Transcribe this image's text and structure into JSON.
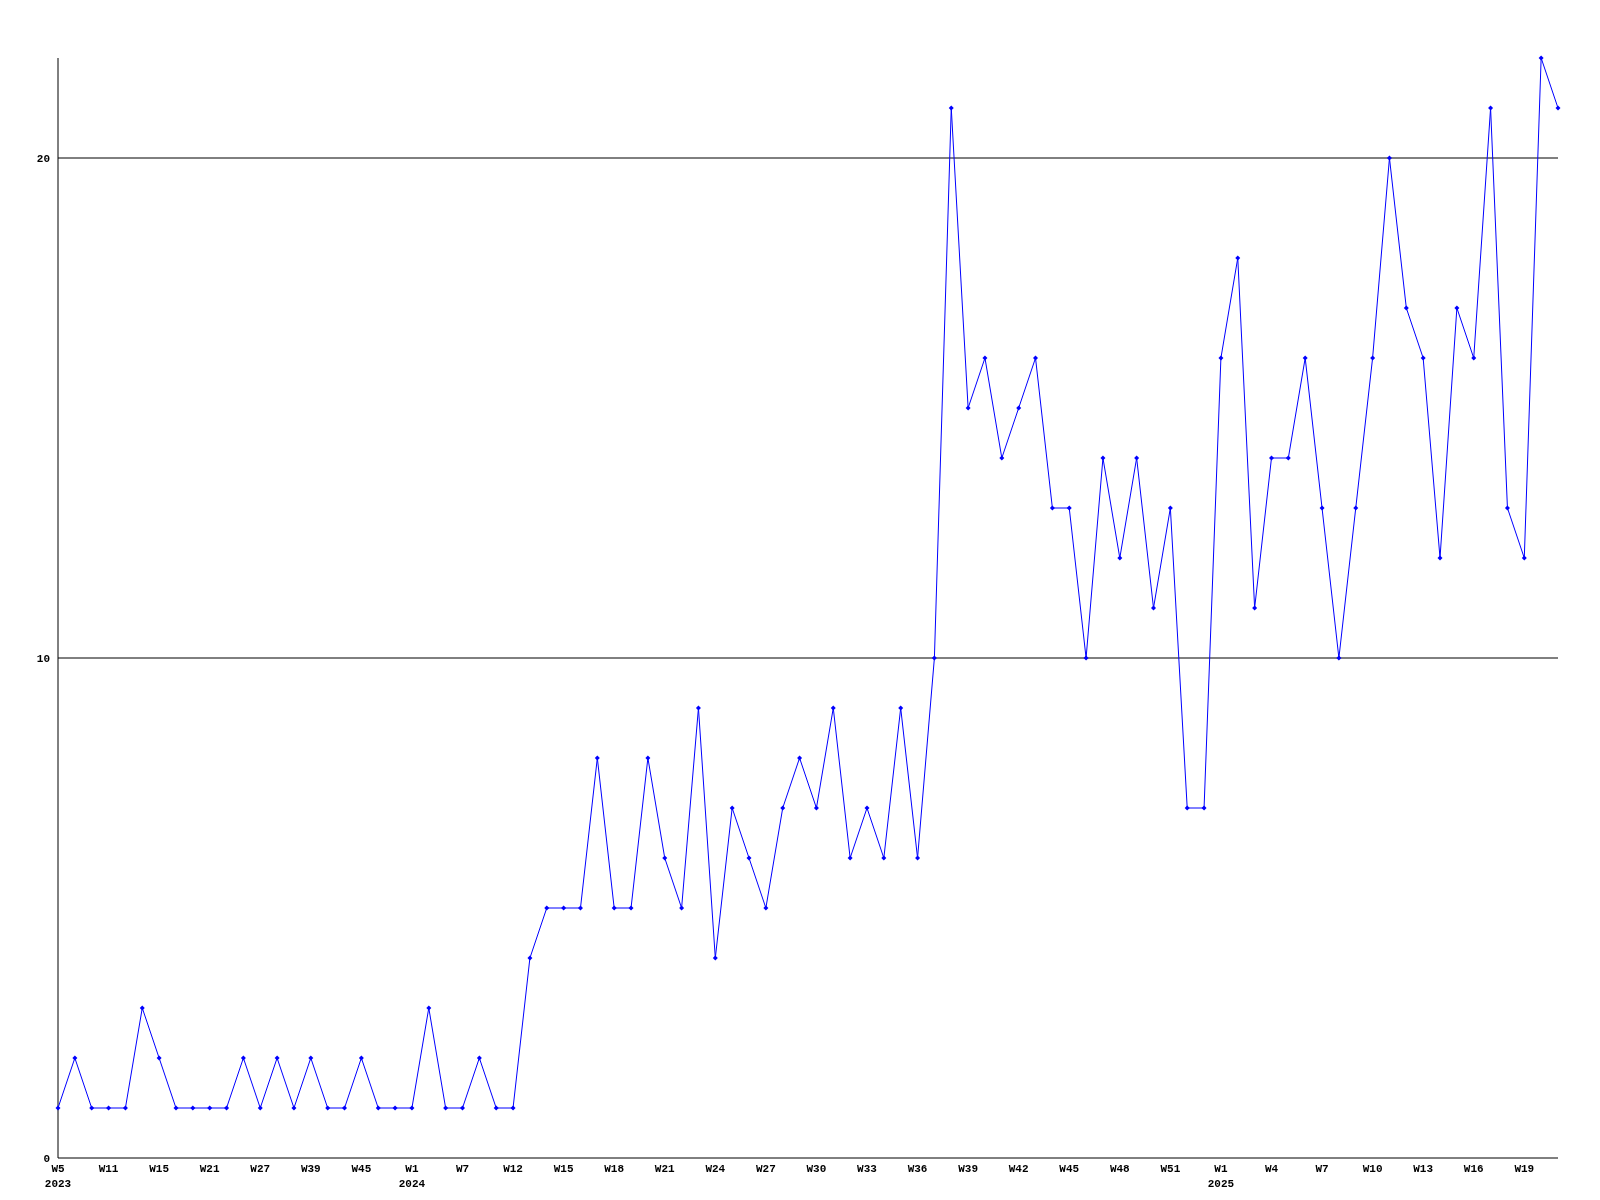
{
  "chart_data": {
    "type": "line",
    "categories": [
      "W5\n2023",
      null,
      null,
      "W11",
      null,
      null,
      "W15",
      null,
      null,
      "W21",
      null,
      null,
      "W27",
      null,
      null,
      "W39",
      null,
      null,
      "W45",
      null,
      null,
      "W1\n2024",
      null,
      null,
      "W7",
      null,
      null,
      "W12",
      null,
      null,
      "W15",
      null,
      null,
      "W18",
      null,
      null,
      "W21",
      null,
      null,
      "W24",
      null,
      null,
      "W27",
      null,
      null,
      "W30",
      null,
      null,
      "W33",
      null,
      null,
      "W36",
      null,
      null,
      "W39",
      null,
      null,
      "W42",
      null,
      null,
      "W45",
      null,
      null,
      "W48",
      null,
      null,
      "W51",
      null,
      null,
      "W1\n2025",
      null,
      null,
      "W4",
      null,
      null,
      "W7",
      null,
      null,
      "W10",
      null,
      null,
      "W13",
      null,
      null,
      "W16",
      null,
      null,
      "W19",
      null,
      null
    ],
    "series": [
      {
        "color": "#0000ff",
        "values": [
          1,
          2,
          1,
          1,
          1,
          3,
          2,
          1,
          1,
          1,
          1,
          2,
          1,
          2,
          1,
          2,
          1,
          1,
          2,
          1,
          1,
          1,
          3,
          1,
          1,
          2,
          1,
          1,
          4,
          5,
          5,
          5,
          8,
          5,
          5,
          8,
          6,
          5,
          9,
          4,
          7,
          6,
          5,
          7,
          8,
          7,
          9,
          6,
          7,
          6,
          9,
          6,
          10,
          21,
          15,
          16,
          14,
          15,
          16,
          13,
          13,
          10,
          14,
          12,
          14,
          11,
          13,
          7,
          7,
          16,
          18,
          11,
          14,
          14,
          16,
          13,
          10,
          13,
          16,
          20,
          17,
          16,
          12,
          17,
          16,
          21,
          13,
          12,
          22,
          21
        ]
      }
    ],
    "ylim": [
      0,
      22
    ],
    "yticks": [
      0,
      10,
      20
    ],
    "grid": "y",
    "marker": "diamond",
    "line_style": "solid"
  }
}
